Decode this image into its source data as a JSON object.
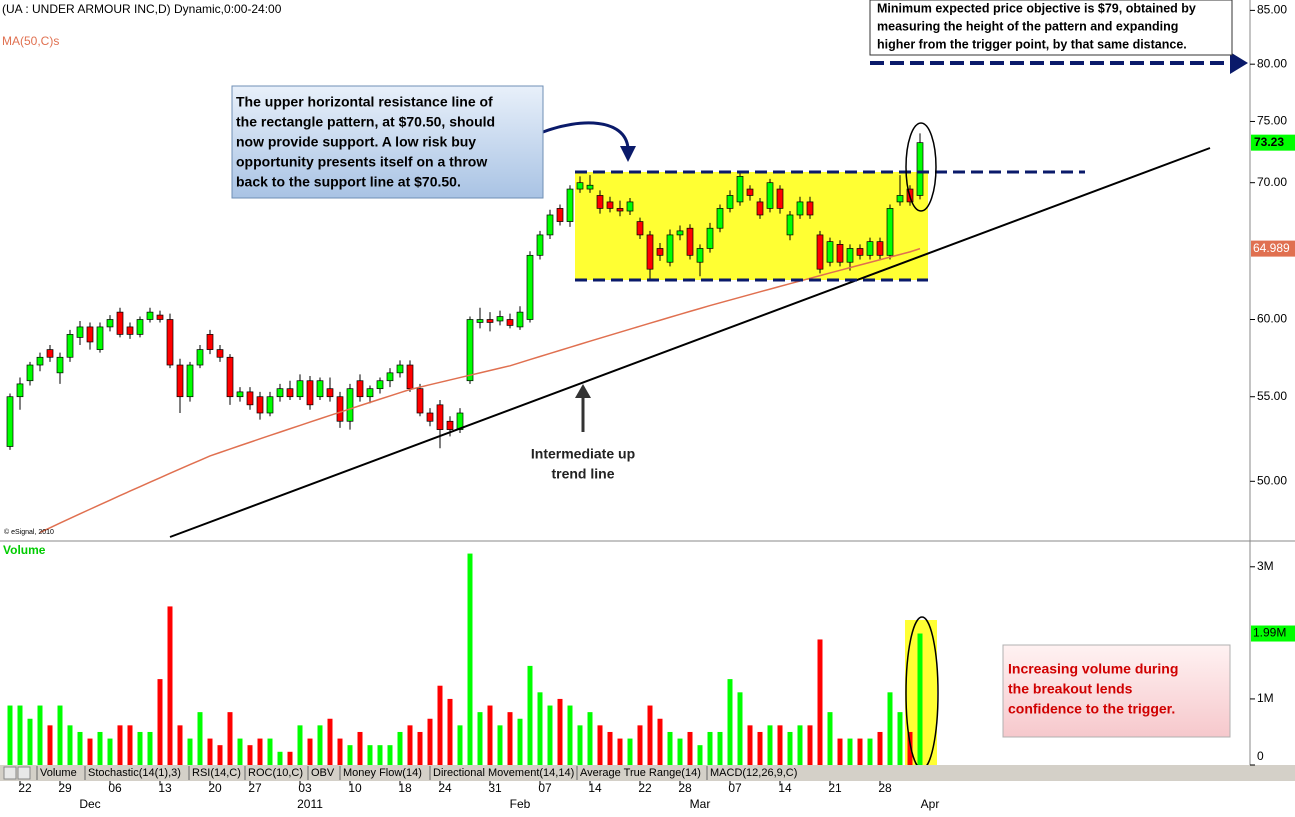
{
  "chart_data": [
    {
      "type": "candlestick",
      "title": "(UA : UNDER ARMOUR INC,D) Dynamic,0:00-24:00",
      "credit": "© eSignal, 2010",
      "categories": [
        null,
        "22",
        null,
        null,
        null,
        "29",
        null,
        null,
        null,
        null,
        "06",
        null,
        null,
        null,
        null,
        "13",
        null,
        null,
        null,
        null,
        "20",
        null,
        null,
        null,
        "27",
        null,
        null,
        null,
        null,
        "03",
        null,
        null,
        null,
        null,
        "10",
        null,
        null,
        null,
        null,
        "18",
        null,
        null,
        null,
        "24",
        null,
        null,
        null,
        null,
        "31",
        null,
        null,
        null,
        null,
        "07",
        null,
        null,
        null,
        null,
        "14",
        null,
        null,
        null,
        null,
        "22",
        null,
        null,
        null,
        "28",
        null,
        null,
        null,
        null,
        "07",
        null,
        null,
        null,
        null,
        "14",
        null,
        null,
        null,
        null,
        "21",
        null,
        null,
        null,
        null,
        "28",
        null,
        null,
        null,
        null
      ],
      "x_groups": [
        {
          "value": 7,
          "label": "Dec"
        },
        {
          "value": 29,
          "label": "2011"
        },
        {
          "value": 50,
          "label": "Feb"
        },
        {
          "value": 68,
          "label": "Mar"
        },
        {
          "value": 91,
          "label": "Apr"
        }
      ],
      "open": [
        52,
        55,
        56,
        57,
        58,
        56.5,
        57.5,
        58.8,
        59.5,
        58,
        59.5,
        60.5,
        59.5,
        59,
        60,
        60.3,
        60,
        57,
        55,
        57,
        59,
        58,
        57.5,
        55,
        55.3,
        55,
        54,
        55,
        55.5,
        55,
        56,
        55,
        55.5,
        55,
        53.5,
        56,
        55,
        55.5,
        56,
        56.5,
        57,
        55.5,
        54,
        54.5,
        53.5,
        53,
        56,
        59.8,
        60,
        59.9,
        60,
        59.5,
        60,
        64.5,
        66,
        68,
        67,
        69.5,
        69.5,
        69,
        68.5,
        68,
        67.8,
        67,
        66,
        65,
        64,
        66,
        66.5,
        64,
        65,
        66.5,
        68,
        68.5,
        69.5,
        68.5,
        68,
        69.5,
        66,
        67.5,
        68.5,
        66,
        64,
        65.3,
        64,
        65,
        64.5,
        65.5,
        64.5,
        68.5,
        69.5,
        69
      ],
      "high": [
        55.2,
        56.2,
        57.2,
        57.8,
        58.3,
        57.8,
        59.3,
        59.9,
        59.8,
        59.8,
        60.3,
        60.8,
        59.8,
        60.2,
        60.8,
        60.6,
        60.4,
        57.4,
        57.2,
        58.3,
        59.3,
        58.3,
        57.7,
        55.6,
        55.6,
        55.3,
        55.3,
        55.8,
        56,
        56.4,
        56.3,
        56.2,
        56.2,
        55.3,
        55.8,
        56.4,
        55.7,
        56.2,
        56.8,
        57.3,
        57.3,
        55.8,
        54.3,
        54.8,
        53.8,
        54.3,
        60.2,
        60.8,
        60.5,
        60.6,
        60.4,
        60.9,
        64.8,
        66.3,
        67.9,
        68.3,
        69.8,
        70.5,
        70.6,
        69.4,
        68.9,
        68.6,
        68.8,
        67.3,
        66.3,
        65.4,
        66.4,
        66.7,
        66.8,
        65.3,
        66.9,
        68.3,
        69.4,
        70.9,
        69.8,
        68.8,
        70.3,
        69.8,
        67.8,
        68.9,
        68.9,
        66.3,
        65.8,
        65.6,
        65.3,
        65.3,
        65.8,
        65.8,
        68.3,
        70.6,
        69.8,
        74
      ],
      "low": [
        51.8,
        54.2,
        55.7,
        56.6,
        57.2,
        55.8,
        57.2,
        58.3,
        58,
        57.8,
        59.2,
        58.8,
        58.7,
        58.8,
        59.8,
        59.8,
        56.8,
        54,
        54.7,
        56.8,
        57.7,
        57.2,
        54.5,
        54.7,
        54.2,
        53.6,
        53.8,
        54.7,
        54.8,
        54.8,
        54.2,
        54.8,
        54.7,
        53.1,
        53,
        54.7,
        54.6,
        55.2,
        55.6,
        56.2,
        55.3,
        53.8,
        53.2,
        51.9,
        52.6,
        52.8,
        55.8,
        59.4,
        59.2,
        59.6,
        59.4,
        59.3,
        59.8,
        64.2,
        65.7,
        66.7,
        66.6,
        69.2,
        69.2,
        67.6,
        67.7,
        67.4,
        67.5,
        65.7,
        62.8,
        64.1,
        63.7,
        65.6,
        64.2,
        63,
        64.7,
        66.2,
        67.7,
        68.2,
        68.6,
        67.2,
        67.7,
        67.6,
        65.6,
        67.2,
        67.2,
        63.2,
        63.7,
        63.7,
        63.4,
        64.2,
        64.2,
        64.2,
        64.2,
        68.2,
        68.2,
        68.7
      ],
      "close": [
        55,
        55.8,
        57,
        57.5,
        57.5,
        57.5,
        59,
        59.5,
        58.5,
        59.5,
        60,
        59,
        59,
        60,
        60.5,
        60,
        57,
        55,
        57,
        58,
        58,
        57.5,
        55,
        55.3,
        54.5,
        54,
        55,
        55.5,
        55,
        56,
        54.5,
        56,
        55,
        53.5,
        55.5,
        55,
        55.5,
        56,
        56.5,
        57,
        55.5,
        54,
        53.5,
        53,
        53,
        54,
        60,
        60,
        59.8,
        60.2,
        59.6,
        60.5,
        64.5,
        66,
        67.5,
        67,
        69.5,
        70,
        69.8,
        68,
        68,
        67.8,
        68.5,
        66,
        63.5,
        64.5,
        66,
        66.3,
        64.5,
        65,
        66.5,
        68,
        69,
        70.5,
        69,
        67.5,
        70,
        68,
        67.5,
        68.5,
        67.5,
        63.5,
        65.5,
        64,
        65,
        64.5,
        65.5,
        64.5,
        68,
        69,
        68.5,
        73.23
      ],
      "up_color": "#00ff00",
      "down_color": "#ff0000",
      "ma": {
        "name": "MA(50,C)s",
        "color": "#e07050",
        "values": [
          null,
          null,
          null,
          47.2,
          47.45,
          47.7,
          47.95,
          48.2,
          48.45,
          48.7,
          48.95,
          49.2,
          49.45,
          49.7,
          49.95,
          50.2,
          50.45,
          50.7,
          50.95,
          51.2,
          51.45,
          51.65,
          51.85,
          52.05,
          52.25,
          52.45,
          52.65,
          52.85,
          53.05,
          53.25,
          53.45,
          53.65,
          53.85,
          54.05,
          54.25,
          54.45,
          54.65,
          54.85,
          55.05,
          55.25,
          55.45,
          55.6,
          55.75,
          55.9,
          56.05,
          56.2,
          56.35,
          56.5,
          56.65,
          56.8,
          56.95,
          57.15,
          57.35,
          57.55,
          57.75,
          57.95,
          58.15,
          58.35,
          58.55,
          58.75,
          58.95,
          59.15,
          59.35,
          59.55,
          59.75,
          59.95,
          60.15,
          60.35,
          60.55,
          60.75,
          60.95,
          61.14,
          61.33,
          61.52,
          61.71,
          61.9,
          62.09,
          62.28,
          62.47,
          62.66,
          62.85,
          63.04,
          63.23,
          63.42,
          63.61,
          63.8,
          63.99,
          64.18,
          64.37,
          64.56,
          64.75,
          64.989
        ]
      },
      "ylim": [
        46.8,
        86
      ],
      "log_scale": true,
      "yticks": [
        {
          "value": 50,
          "label": "50.00"
        },
        {
          "value": 55,
          "label": "55.00"
        },
        {
          "value": 60,
          "label": "60.00"
        },
        {
          "value": 70,
          "label": "70.00"
        },
        {
          "value": 75,
          "label": "75.00"
        },
        {
          "value": 80,
          "label": "80.00"
        },
        {
          "value": 85,
          "label": "85.00"
        }
      ]
    },
    {
      "type": "bar",
      "title": "Volume",
      "values": [
        0.9,
        0.9,
        0.7,
        0.9,
        0.6,
        0.9,
        0.6,
        0.5,
        0.4,
        0.5,
        0.4,
        0.6,
        0.6,
        0.5,
        0.5,
        1.3,
        2.4,
        0.6,
        0.4,
        0.8,
        0.4,
        0.3,
        0.8,
        0.4,
        0.3,
        0.4,
        0.4,
        0.2,
        0.2,
        0.6,
        0.4,
        0.6,
        0.7,
        0.4,
        0.3,
        0.5,
        0.3,
        0.3,
        0.3,
        0.5,
        0.6,
        0.5,
        0.7,
        1.2,
        1.0,
        0.6,
        3.2,
        0.8,
        0.9,
        0.6,
        0.8,
        0.7,
        1.5,
        1.1,
        0.9,
        1.0,
        0.9,
        0.6,
        0.8,
        0.6,
        0.5,
        0.4,
        0.4,
        0.6,
        0.9,
        0.7,
        0.5,
        0.4,
        0.5,
        0.3,
        0.5,
        0.5,
        1.3,
        1.1,
        0.6,
        0.5,
        0.6,
        0.6,
        0.5,
        0.6,
        0.6,
        1.9,
        0.8,
        0.4,
        0.4,
        0.4,
        0.4,
        0.5,
        1.1,
        0.8,
        0.5,
        1.99
      ],
      "last_value_label": "1.99M",
      "ylim": [
        0,
        3.36
      ],
      "yticks": [
        0,
        {
          "value": 1,
          "label": "1M"
        },
        {
          "value": 3,
          "label": "3M"
        }
      ]
    }
  ],
  "tabs": [
    "Volume",
    "Stochastic(14(1),3)",
    "RSI(14,C)",
    "ROC(10,C)",
    "OBV",
    "Money Flow(14)",
    "Directional Movement(14,14)",
    "Average True Range(14)",
    "MACD(12,26,9,C)"
  ],
  "annotations": {
    "support_note": [
      "The upper horizontal resistance line of",
      "the rectangle pattern, at $70.50,  should",
      "now provide support. A low risk buy",
      "opportunity presents itself on a throw",
      "back to the support line at $70.50."
    ],
    "objective_note": [
      "Minimum expected price objective is $79, obtained by",
      "measuring the height of the pattern and expanding",
      "higher from the trigger point, by that same distance."
    ],
    "volume_note": [
      "Increasing volume during",
      "the breakout lends",
      "confidence to the trigger."
    ],
    "trend_note": [
      "Intermediate up",
      "trend line"
    ]
  }
}
